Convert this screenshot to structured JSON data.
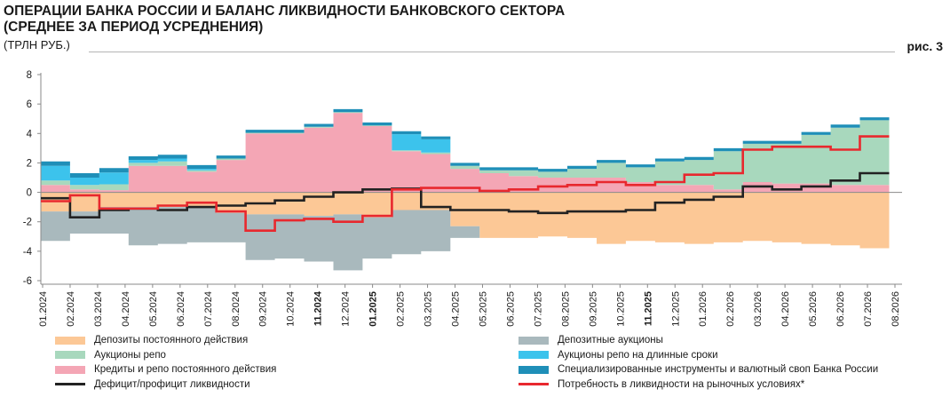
{
  "header": {
    "title_line1": "ОПЕРАЦИИ БАНКА РОССИИ И БАЛАНС ЛИКВИДНОСТИ БАНКОВСКОГО СЕКТОРА",
    "title_line2": "(СРЕДНЕЕ ЗА ПЕРИОД УСРЕДНЕНИЯ)",
    "units": "(ТРЛН РУБ.)",
    "figure_label": "рис. 3"
  },
  "chart_data": {
    "type": "area",
    "ylim": [
      -6,
      8
    ],
    "yticks": [
      -6,
      -4,
      -2,
      0,
      2,
      4,
      6,
      8
    ],
    "grid": false,
    "legend_position": "bottom",
    "x_labels": [
      "01.2024",
      "02.2024",
      "03.2024",
      "04.2024",
      "05.2024",
      "06.2024",
      "07.2024",
      "08.2024",
      "09.2024",
      "10.2024",
      "11.2024",
      "12.2024",
      "01.2025",
      "02.2025",
      "03.2025",
      "04.2025",
      "05.2025",
      "06.2025",
      "07.2025",
      "08.2025",
      "09.2025",
      "10.2025",
      "11.2025",
      "12.2025",
      "01.2026",
      "02.2026",
      "03.2026",
      "04.2026",
      "05.2026",
      "06.2026",
      "07.2026",
      "08.2026"
    ],
    "bold_labels": [
      "11.2024",
      "01.2025",
      "11.2025"
    ],
    "periods": 29,
    "series": [
      {
        "name": "Кредиты и репо постоянного действия",
        "color": "#f4a6b5",
        "stack": "pos",
        "values": [
          0.5,
          0.2,
          0.15,
          1.8,
          1.8,
          1.4,
          2.2,
          4.0,
          4.0,
          4.4,
          5.4,
          4.5,
          2.8,
          2.6,
          1.6,
          1.3,
          1.1,
          1.0,
          1.0,
          1.0,
          0.7,
          0.5,
          0.5,
          0.2,
          0.7,
          0.6,
          0.6,
          0.5,
          0.5
        ]
      },
      {
        "name": "Аукционы репо",
        "color": "#a8d8bd",
        "stack": "pos",
        "values": [
          0.3,
          0.3,
          0.4,
          0.2,
          0.3,
          0.1,
          0.1,
          0.05,
          0.05,
          0.05,
          0.05,
          0.05,
          0.05,
          0.1,
          0.2,
          0.2,
          0.4,
          0.4,
          0.6,
          1.0,
          1.0,
          1.6,
          1.7,
          2.6,
          2.6,
          2.7,
          3.3,
          3.9,
          4.4
        ]
      },
      {
        "name": "Аукционы репо на длинные сроки",
        "color": "#3cc3ec",
        "stack": "pos",
        "values": [
          1.0,
          0.5,
          0.8,
          0.2,
          0.2,
          0.1,
          0.0,
          0.0,
          0.0,
          0.0,
          0.0,
          0.0,
          1.1,
          0.9,
          0.0,
          0.0,
          0.0,
          0.0,
          0.0,
          0.0,
          0.0,
          0.0,
          0.0,
          0.0,
          0.0,
          0.0,
          0.0,
          0.0,
          0.0
        ]
      },
      {
        "name": "Специализированные инструменты и валютный своп Банка России",
        "color": "#1f8fb8",
        "stack": "pos",
        "values": [
          0.3,
          0.3,
          0.3,
          0.25,
          0.25,
          0.25,
          0.2,
          0.2,
          0.2,
          0.2,
          0.2,
          0.2,
          0.2,
          0.2,
          0.2,
          0.2,
          0.2,
          0.2,
          0.2,
          0.2,
          0.2,
          0.2,
          0.2,
          0.2,
          0.2,
          0.2,
          0.2,
          0.2,
          0.2
        ]
      },
      {
        "name": "Депозиты постоянного действия",
        "color": "#fcc896",
        "stack": "neg",
        "values": [
          -1.3,
          -1.3,
          -1.0,
          -1.0,
          -1.0,
          -1.0,
          -1.4,
          -1.5,
          -1.5,
          -1.6,
          -1.5,
          -1.7,
          -1.2,
          -1.2,
          -2.3,
          -3.1,
          -3.1,
          -3.0,
          -3.1,
          -3.5,
          -3.3,
          -3.4,
          -3.5,
          -3.4,
          -3.3,
          -3.4,
          -3.5,
          -3.6,
          -3.8
        ]
      },
      {
        "name": "Депозитные аукционы",
        "color": "#a9b9bd",
        "stack": "neg",
        "values": [
          -2.0,
          -1.5,
          -1.8,
          -2.6,
          -2.5,
          -2.4,
          -2.0,
          -3.1,
          -3.0,
          -3.1,
          -3.8,
          -2.8,
          -3.0,
          -2.8,
          -0.8,
          0.0,
          0.0,
          0.0,
          0.0,
          0.0,
          0.0,
          0.0,
          0.0,
          0.0,
          0.0,
          0.0,
          0.0,
          0.0,
          0.0
        ]
      },
      {
        "name": "Дефицит/профицит ликвидности",
        "color": "#222222",
        "kind": "line",
        "values": [
          -0.4,
          -1.7,
          -1.2,
          -1.1,
          -1.2,
          -1.0,
          -0.9,
          -0.75,
          -0.55,
          -0.3,
          0.0,
          0.2,
          0.25,
          -1.0,
          -1.2,
          -1.2,
          -1.3,
          -1.4,
          -1.3,
          -1.3,
          -1.2,
          -0.7,
          -0.5,
          -0.3,
          0.4,
          0.2,
          0.4,
          0.8,
          1.3
        ]
      },
      {
        "name": "Потребность в ликвидности на рыночных условиях*",
        "color": "#e8282e",
        "kind": "line",
        "values": [
          -0.6,
          -0.2,
          -1.1,
          -1.1,
          -0.9,
          -0.7,
          -1.3,
          -2.6,
          -1.9,
          -1.8,
          -2.0,
          -1.6,
          0.2,
          0.3,
          0.3,
          0.1,
          0.2,
          0.4,
          0.5,
          0.7,
          0.5,
          0.7,
          1.2,
          1.3,
          2.9,
          3.1,
          3.1,
          2.9,
          3.8
        ]
      }
    ]
  },
  "legend": [
    {
      "label": "Депозиты постоянного действия",
      "color": "#fcc896",
      "kind": "area"
    },
    {
      "label": "Депозитные аукционы",
      "color": "#a9b9bd",
      "kind": "area"
    },
    {
      "label": "Аукционы репо",
      "color": "#a8d8bd",
      "kind": "area"
    },
    {
      "label": "Аукционы репо на длинные сроки",
      "color": "#3cc3ec",
      "kind": "area"
    },
    {
      "label": "Кредиты и репо постоянного действия",
      "color": "#f4a6b5",
      "kind": "area"
    },
    {
      "label": "Специализированные инструменты и валютный своп Банка России",
      "color": "#1f8fb8",
      "kind": "area"
    },
    {
      "label": "Дефицит/профицит ликвидности",
      "color": "#222222",
      "kind": "line"
    },
    {
      "label": "Потребность в ликвидности на рыночных условиях*",
      "color": "#e8282e",
      "kind": "line"
    }
  ]
}
